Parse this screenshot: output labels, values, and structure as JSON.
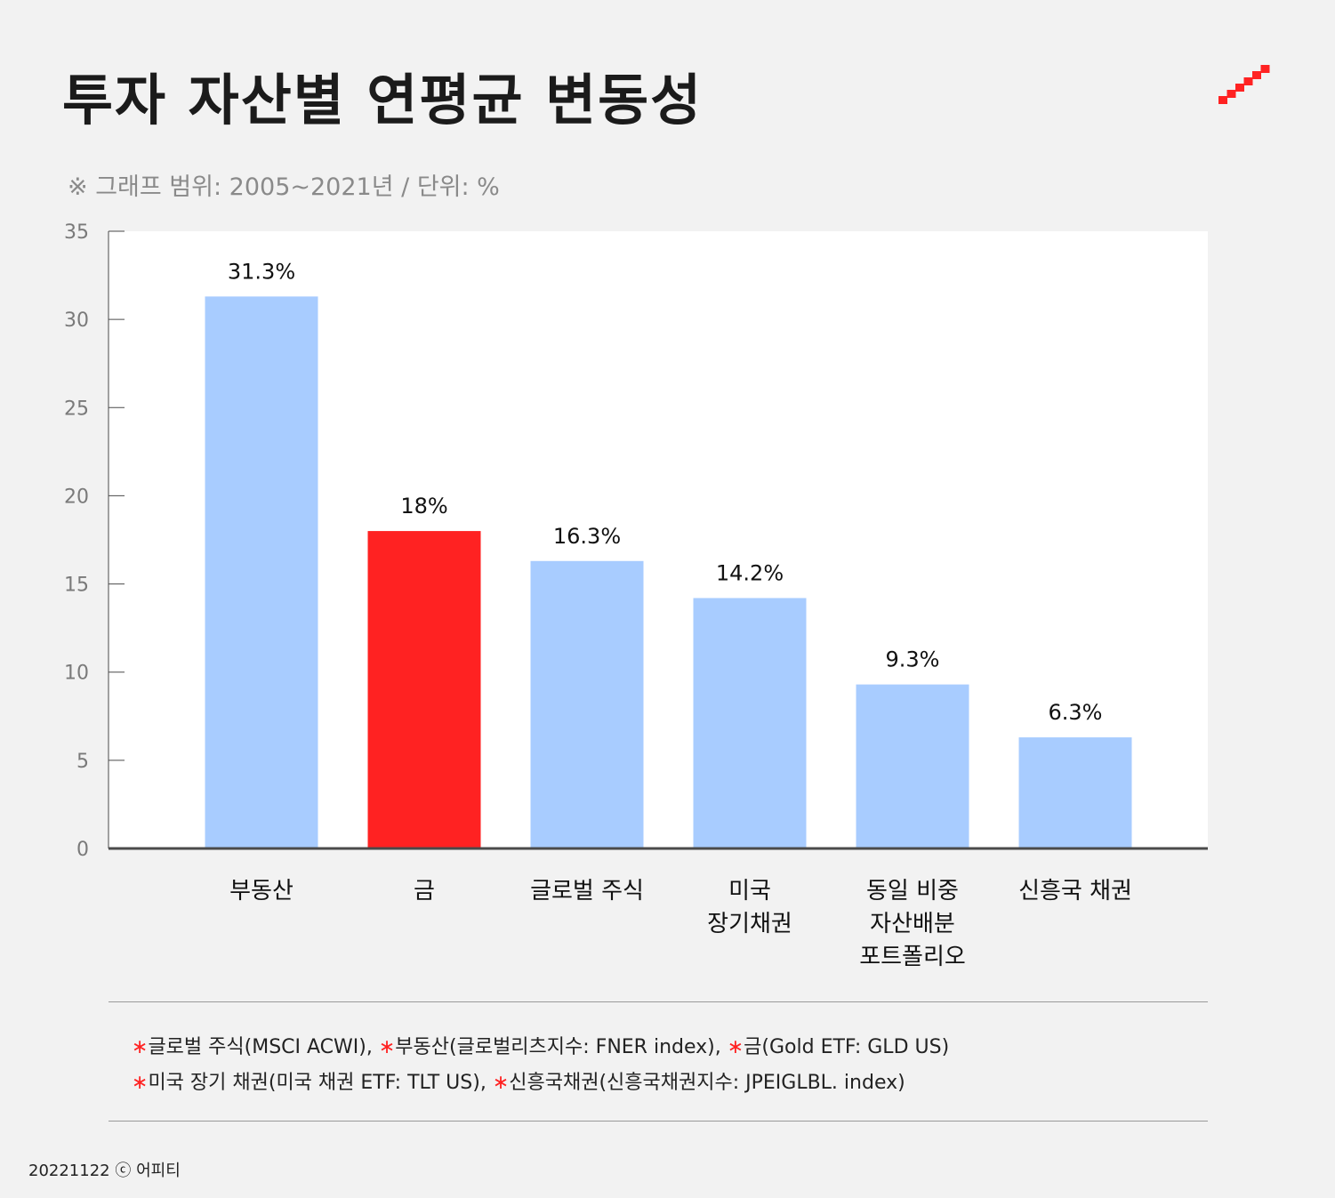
{
  "title": "투자 자산별 연평균 변동성",
  "subtitle": "※ 그래프 범위: 2005~2021년 / 단위: %",
  "colors": {
    "background": "#f2f2f2",
    "plot_background": "#ffffff",
    "bar_default": "#a8ccff",
    "bar_highlight": "#ff2222",
    "axis": "#4a4a4a",
    "tick_text": "#7a7a7a",
    "brand_accent": "#ff2222"
  },
  "chart_data": {
    "type": "bar",
    "title": "",
    "xlabel": "",
    "ylabel": "",
    "ylim": [
      0,
      35
    ],
    "yticks": [
      0,
      5,
      10,
      15,
      20,
      25,
      30,
      35
    ],
    "grid": false,
    "categories": [
      [
        "부동산"
      ],
      [
        "금"
      ],
      [
        "글로벌 주식"
      ],
      [
        "미국",
        "장기채권"
      ],
      [
        "동일 비중",
        "자산배분",
        "포트폴리오"
      ],
      [
        "신흥국 채권"
      ]
    ],
    "values": [
      31.3,
      18,
      16.3,
      14.2,
      9.3,
      6.3
    ],
    "data_labels": [
      "31.3%",
      "18%",
      "16.3%",
      "14.2%",
      "9.3%",
      "6.3%"
    ],
    "highlight_index": 1
  },
  "notes": [
    [
      {
        "star": "∗",
        "text": "글로벌 주식(MSCI ACWI), "
      },
      {
        "star": "∗",
        "text": "부동산(글로벌리츠지수: FNER index), "
      },
      {
        "star": "∗",
        "text": "금(Gold ETF: GLD US)"
      }
    ],
    [
      {
        "star": "∗",
        "text": "미국 장기 채권(미국 채권 ETF: TLT US), "
      },
      {
        "star": "∗",
        "text": "신흥국채권(신흥국채권지수: JPEIGLBL. index)"
      }
    ]
  ],
  "footer": {
    "date": "20221122",
    "copyright_symbol": "ⓒ",
    "brand": "어피티"
  },
  "logo": {
    "icon": "staircase-logo-icon"
  }
}
